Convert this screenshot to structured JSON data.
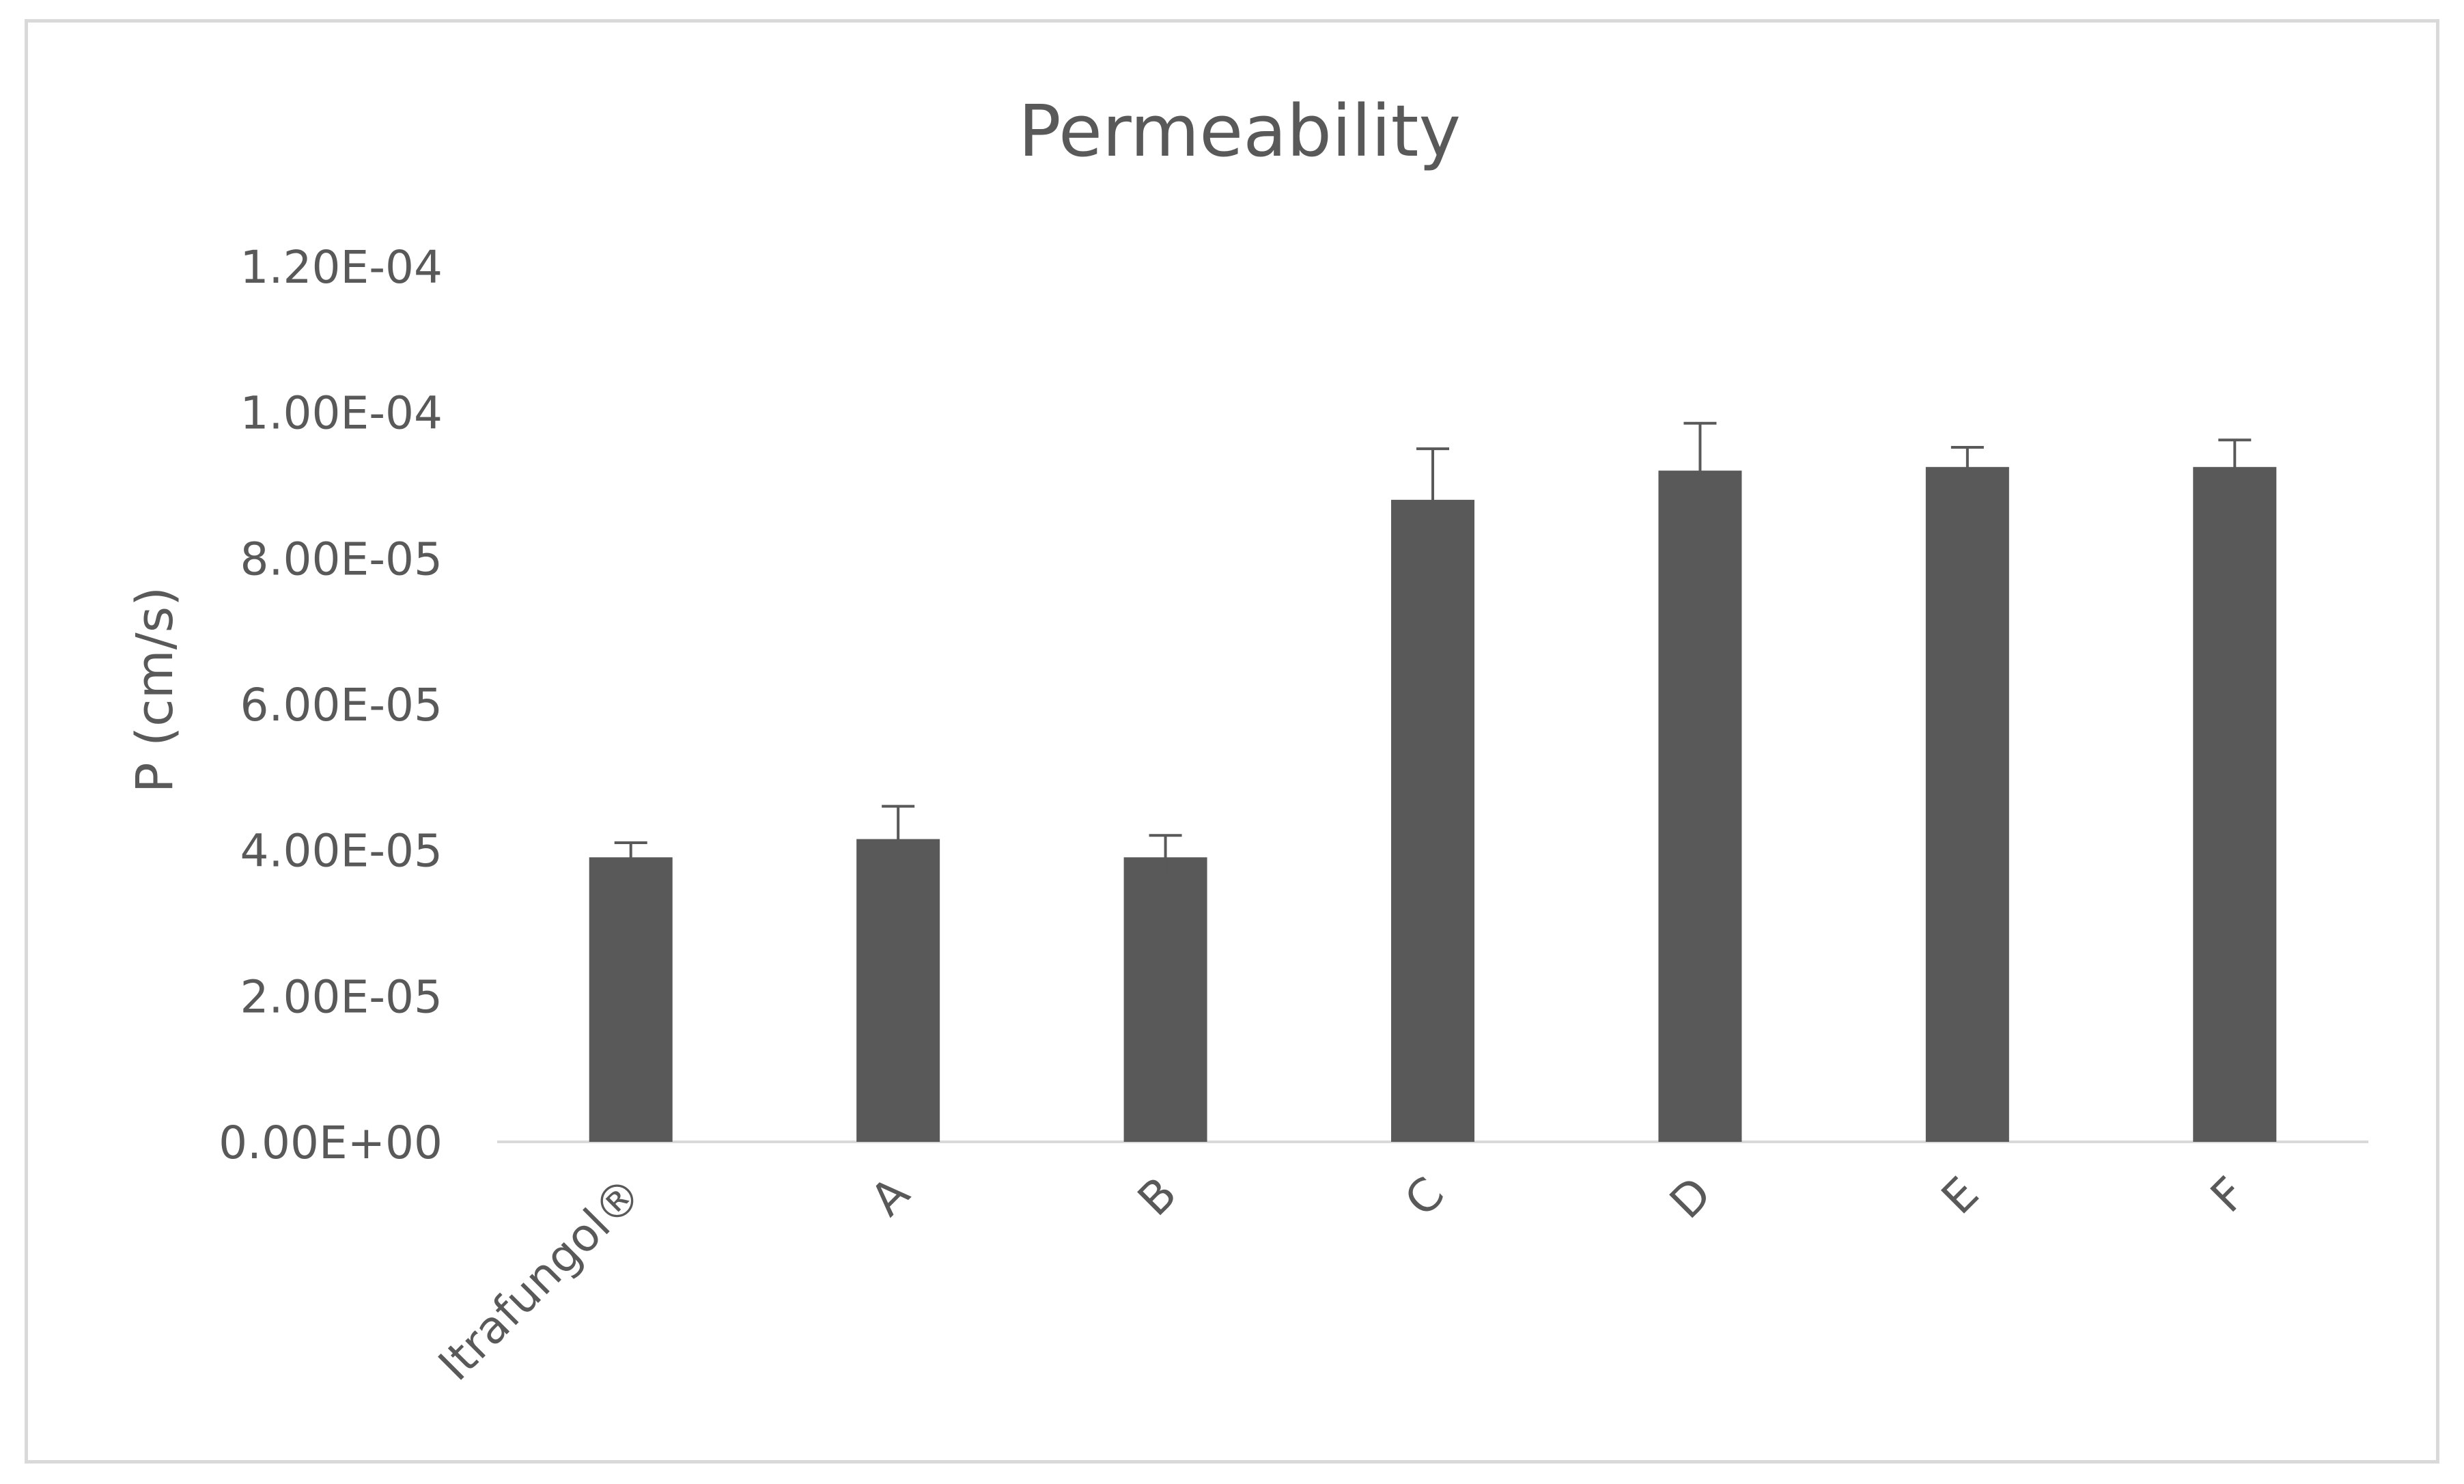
{
  "chart_data": {
    "type": "bar",
    "title": "Permeability",
    "xlabel": "",
    "ylabel": "P (cm/s)",
    "categories": [
      "Itrafungol®",
      "A",
      "B",
      "C",
      "D",
      "E",
      "F"
    ],
    "values": [
      3.9e-05,
      4.15e-05,
      3.9e-05,
      8.8e-05,
      9.2e-05,
      9.25e-05,
      9.25e-05
    ],
    "error": [
      2e-06,
      4.5e-06,
      3e-06,
      7e-06,
      6.5e-06,
      2.7e-06,
      3.7e-06
    ],
    "ylim": [
      0,
      0.00012
    ],
    "yticks": [
      0,
      2e-05,
      4e-05,
      6e-05,
      8e-05,
      0.0001,
      0.00012
    ],
    "ytick_labels": [
      "0.00E+00",
      "2.00E-05",
      "4.00E-05",
      "6.00E-05",
      "8.00E-05",
      "1.00E-04",
      "1.20E-04"
    ],
    "grid": false,
    "legend": "none",
    "colors": {
      "bar": "#595959",
      "error_bar": "#595959",
      "axis_line": "#d9d9d9",
      "text": "#595959"
    }
  }
}
